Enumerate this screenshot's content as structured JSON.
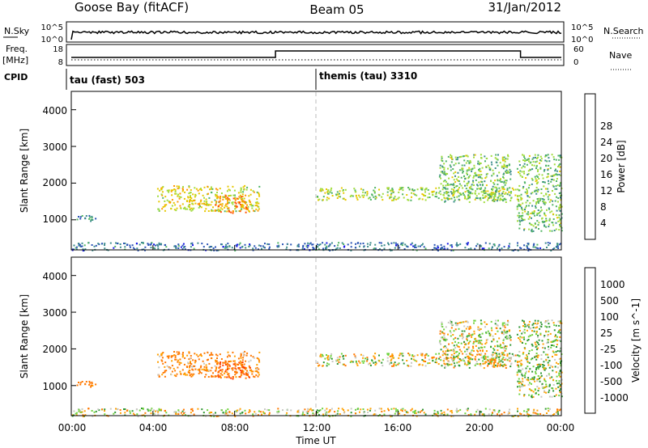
{
  "header": {
    "station": "Goose Bay (fitACF)",
    "beam": "Beam 05",
    "date": "31/Jan/2012"
  },
  "panels": {
    "nsky": {
      "left_label": "N.Sky",
      "left_ticks": [
        "10^5",
        "10^0"
      ],
      "right_label": "N.Search",
      "right_ticks": [
        "10^5",
        "10^0"
      ]
    },
    "freq": {
      "left_label_1": "Freq.",
      "left_label_2": "[MHz]",
      "left_ticks": [
        "18",
        "8"
      ],
      "right_label": "Nave",
      "right_ticks": [
        "60",
        "0"
      ]
    },
    "cpid": {
      "label": "CPID",
      "mode_1": "tau (fast) 503",
      "mode_2": "themis (tau) 3310"
    }
  },
  "axes": {
    "ylabel": "Slant Range [km]",
    "yticks": [
      "1000",
      "2000",
      "3000",
      "4000"
    ],
    "xticks": [
      "00:00",
      "04:00",
      "08:00",
      "12:00",
      "16:00",
      "20:00",
      "00:00"
    ],
    "xlabel": "Time UT"
  },
  "power_scale": {
    "title": "Power [dB]",
    "ticks": [
      "4",
      "8",
      "12",
      "16",
      "20",
      "24",
      "28"
    ],
    "colors": [
      "#1414e6",
      "#2852b4",
      "#3c8c8c",
      "#50b464",
      "#a0dc3c",
      "#e6c800",
      "#ff9600",
      "#ff5000",
      "#f01414"
    ]
  },
  "velocity_scale": {
    "title": "Velocity [m s^-1]",
    "ticks": [
      "1000",
      "500",
      "100",
      "25",
      "-25",
      "-100",
      "-500",
      "-1000"
    ],
    "colors": [
      "#1e2896",
      "#2850c8",
      "#2e9632",
      "#6ed23c",
      "#c8c8c0",
      "#ffa000",
      "#ff7800",
      "#ff3c00",
      "#f01414"
    ]
  },
  "chart_data": {
    "type": "heatmap",
    "x_range_hours_ut": [
      0,
      24
    ],
    "y_range_km": [
      180,
      4500
    ],
    "cpid_change_hour": 12,
    "freq_step": {
      "low_until_hour": 10,
      "high_from_hour": 10,
      "high_until_hour": 22
    },
    "echo_regions": [
      {
        "t0": 0.2,
        "t1": 1.2,
        "r0": 950,
        "r1": 1150,
        "power": 8,
        "velocity": -200
      },
      {
        "t0": 4.2,
        "t1": 9.2,
        "r0": 1250,
        "r1": 1950,
        "power": 18,
        "velocity": -150
      },
      {
        "t0": 7.0,
        "t1": 8.8,
        "r0": 1200,
        "r1": 1700,
        "power": 24,
        "velocity": -500
      },
      {
        "t0": 12.0,
        "t1": 22.0,
        "r0": 1550,
        "r1": 1900,
        "power": 16,
        "velocity": 0
      },
      {
        "t0": 18.0,
        "t1": 21.5,
        "r0": 1500,
        "r1": 2800,
        "power": 14,
        "velocity": 0
      },
      {
        "t0": 21.8,
        "t1": 24.0,
        "r0": 700,
        "r1": 2800,
        "power": 14,
        "velocity": 50
      },
      {
        "t0": 0.0,
        "t1": 24.0,
        "r0": 180,
        "r1": 400,
        "power": 6,
        "velocity": 0
      }
    ]
  }
}
